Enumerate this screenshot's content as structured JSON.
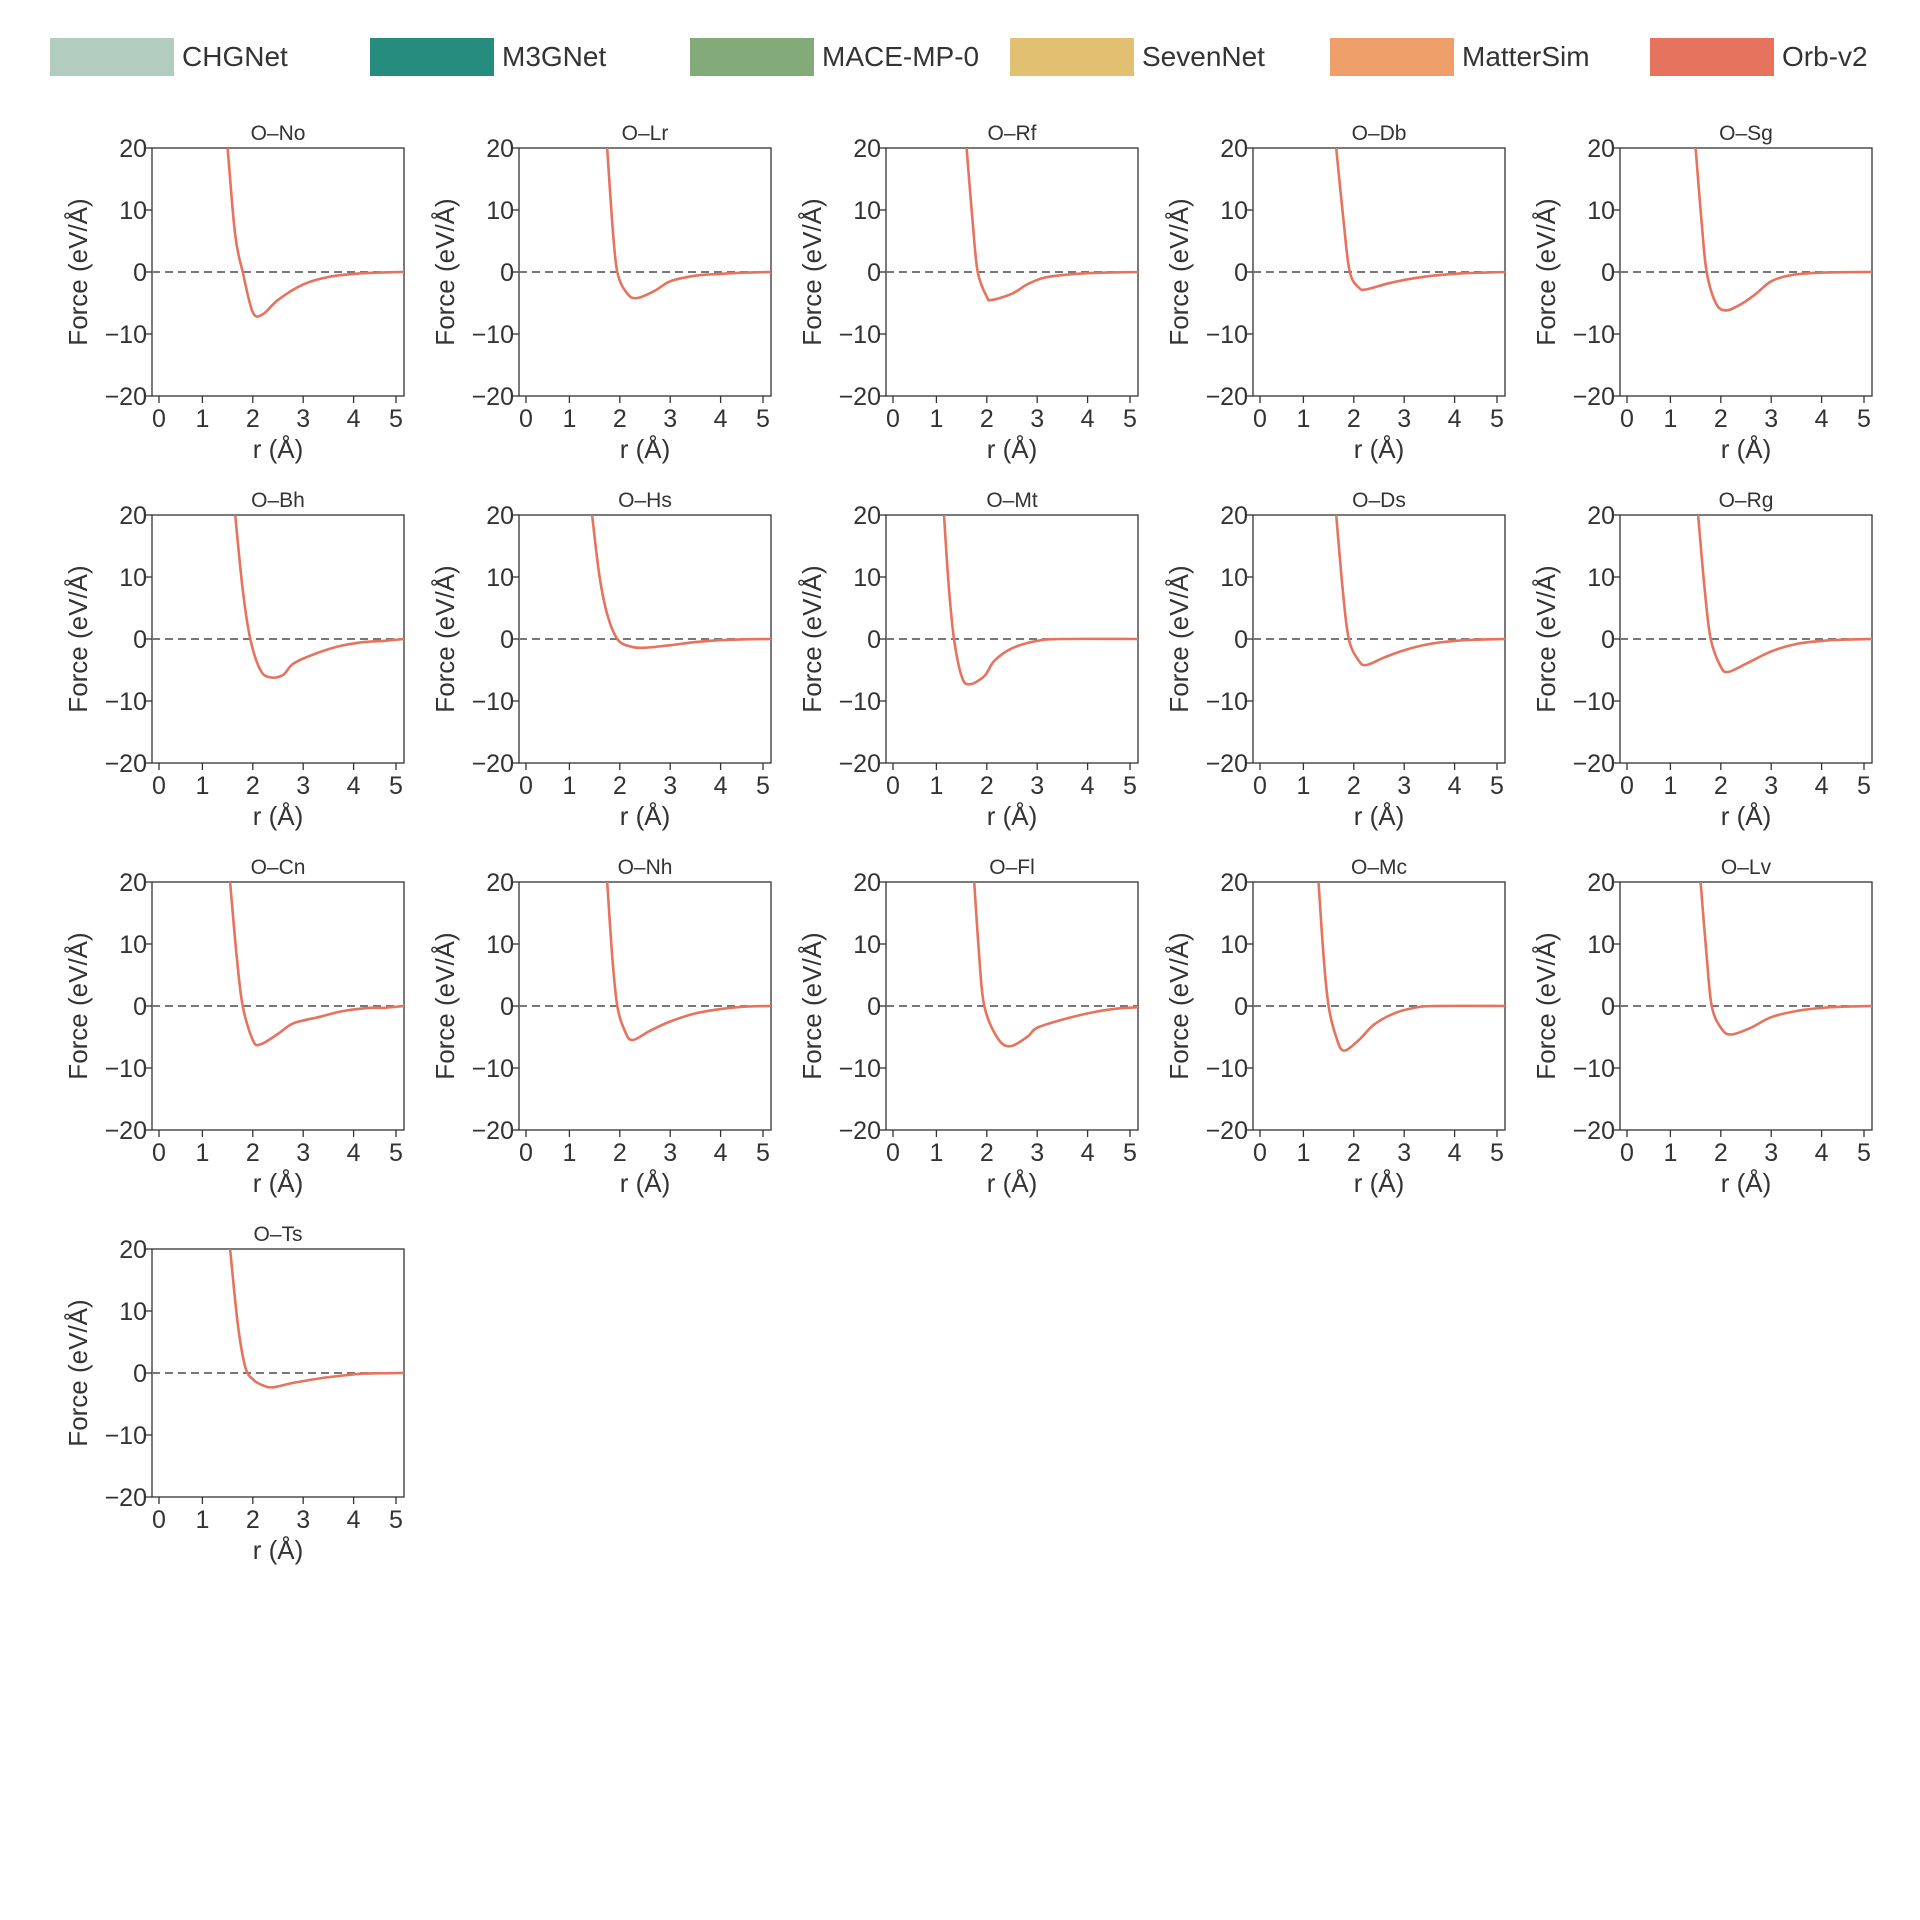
{
  "legend": [
    {
      "name": "CHGNet",
      "color": "#b2cdc0"
    },
    {
      "name": "M3GNet",
      "color": "#268c7d"
    },
    {
      "name": "MACE-MP-0",
      "color": "#82ab79"
    },
    {
      "name": "SevenNet",
      "color": "#e2c071"
    },
    {
      "name": "MatterSim",
      "color": "#efa06a"
    },
    {
      "name": "Orb-v2",
      "color": "#e5735e"
    }
  ],
  "chart_data": {
    "type": "line",
    "xlabel": "r (Å)",
    "ylabel": "Force (eV/Å)",
    "xlim": [
      0,
      5
    ],
    "ylim": [
      -20,
      20
    ],
    "xticks": [
      "0",
      "1",
      "2",
      "3",
      "4",
      "5"
    ],
    "yticks": [
      "20",
      "10",
      "0",
      "−10",
      "−20"
    ],
    "grid": false,
    "zero_line": "dashed",
    "legend_position": "top",
    "series_color": "#e5735e",
    "series_name": "Orb-v2",
    "panels": [
      {
        "title": "O–No",
        "points": [
          [
            1.5,
            20
          ],
          [
            1.65,
            6
          ],
          [
            1.8,
            0
          ],
          [
            2.0,
            -6.5
          ],
          [
            2.2,
            -6.8
          ],
          [
            2.5,
            -4.5
          ],
          [
            3.0,
            -2
          ],
          [
            3.5,
            -0.8
          ],
          [
            4.0,
            -0.3
          ],
          [
            4.5,
            -0.1
          ],
          [
            5.0,
            0
          ]
        ]
      },
      {
        "title": "O–Lr",
        "points": [
          [
            1.75,
            20
          ],
          [
            1.85,
            8
          ],
          [
            1.95,
            0
          ],
          [
            2.15,
            -3.5
          ],
          [
            2.35,
            -4.2
          ],
          [
            2.7,
            -3
          ],
          [
            3.0,
            -1.5
          ],
          [
            3.5,
            -0.6
          ],
          [
            4.0,
            -0.3
          ],
          [
            4.5,
            -0.1
          ],
          [
            5.0,
            0
          ]
        ]
      },
      {
        "title": "O–Rf",
        "points": [
          [
            1.6,
            20
          ],
          [
            1.72,
            8
          ],
          [
            1.82,
            0
          ],
          [
            2.0,
            -4
          ],
          [
            2.1,
            -4.5
          ],
          [
            2.5,
            -3.5
          ],
          [
            2.8,
            -2
          ],
          [
            3.1,
            -1
          ],
          [
            3.5,
            -0.5
          ],
          [
            4.0,
            -0.2
          ],
          [
            5.0,
            0
          ]
        ]
      },
      {
        "title": "O–Db",
        "points": [
          [
            1.65,
            20
          ],
          [
            1.8,
            8
          ],
          [
            1.92,
            0
          ],
          [
            2.1,
            -2.5
          ],
          [
            2.25,
            -2.8
          ],
          [
            2.7,
            -1.8
          ],
          [
            3.2,
            -1
          ],
          [
            3.7,
            -0.5
          ],
          [
            4.2,
            -0.2
          ],
          [
            4.6,
            -0.1
          ],
          [
            5.0,
            0
          ]
        ]
      },
      {
        "title": "O–Sg",
        "points": [
          [
            1.5,
            20
          ],
          [
            1.62,
            8
          ],
          [
            1.72,
            0
          ],
          [
            1.9,
            -5
          ],
          [
            2.1,
            -6.2
          ],
          [
            2.4,
            -5.2
          ],
          [
            2.7,
            -3.5
          ],
          [
            3.0,
            -1.5
          ],
          [
            3.4,
            -0.5
          ],
          [
            4.0,
            -0.1
          ],
          [
            5.0,
            0
          ]
        ]
      },
      {
        "title": "O–Bh",
        "points": [
          [
            1.65,
            20
          ],
          [
            1.8,
            8
          ],
          [
            1.95,
            0
          ],
          [
            2.15,
            -5
          ],
          [
            2.35,
            -6.2
          ],
          [
            2.6,
            -5.8
          ],
          [
            2.8,
            -4
          ],
          [
            3.2,
            -2.5
          ],
          [
            3.7,
            -1.2
          ],
          [
            4.2,
            -0.5
          ],
          [
            4.6,
            -0.3
          ],
          [
            5.0,
            0
          ]
        ]
      },
      {
        "title": "O–Hs",
        "points": [
          [
            1.45,
            20
          ],
          [
            1.6,
            10
          ],
          [
            1.75,
            4
          ],
          [
            1.95,
            0
          ],
          [
            2.2,
            -1.2
          ],
          [
            2.5,
            -1.4
          ],
          [
            3.0,
            -1
          ],
          [
            3.5,
            -0.5
          ],
          [
            4.0,
            -0.2
          ],
          [
            4.5,
            -0.05
          ],
          [
            5.0,
            0
          ]
        ]
      },
      {
        "title": "O–Mt",
        "points": [
          [
            1.15,
            20
          ],
          [
            1.25,
            8
          ],
          [
            1.35,
            0
          ],
          [
            1.5,
            -6
          ],
          [
            1.65,
            -7.3
          ],
          [
            1.95,
            -6
          ],
          [
            2.15,
            -3.5
          ],
          [
            2.5,
            -1.5
          ],
          [
            3.0,
            -0.3
          ],
          [
            3.5,
            0
          ],
          [
            5.0,
            0
          ]
        ]
      },
      {
        "title": "O–Ds",
        "points": [
          [
            1.65,
            20
          ],
          [
            1.78,
            8
          ],
          [
            1.9,
            0
          ],
          [
            2.1,
            -3.5
          ],
          [
            2.25,
            -4.2
          ],
          [
            2.6,
            -3
          ],
          [
            3.0,
            -1.8
          ],
          [
            3.5,
            -0.8
          ],
          [
            4.0,
            -0.3
          ],
          [
            4.5,
            -0.1
          ],
          [
            5.0,
            0
          ]
        ]
      },
      {
        "title": "O–Rg",
        "points": [
          [
            1.55,
            20
          ],
          [
            1.68,
            8
          ],
          [
            1.8,
            0
          ],
          [
            2.0,
            -4.5
          ],
          [
            2.15,
            -5.3
          ],
          [
            2.5,
            -4
          ],
          [
            3.0,
            -2
          ],
          [
            3.5,
            -0.8
          ],
          [
            4.0,
            -0.3
          ],
          [
            4.5,
            -0.1
          ],
          [
            5.0,
            0
          ]
        ]
      },
      {
        "title": "O–Cn",
        "points": [
          [
            1.55,
            20
          ],
          [
            1.68,
            8
          ],
          [
            1.8,
            0
          ],
          [
            2.0,
            -5.5
          ],
          [
            2.15,
            -6.2
          ],
          [
            2.5,
            -4.5
          ],
          [
            2.8,
            -2.8
          ],
          [
            3.3,
            -1.8
          ],
          [
            3.8,
            -0.8
          ],
          [
            4.3,
            -0.3
          ],
          [
            4.6,
            -0.3
          ],
          [
            5.0,
            0
          ]
        ]
      },
      {
        "title": "O–Nh",
        "points": [
          [
            1.75,
            20
          ],
          [
            1.85,
            8
          ],
          [
            1.95,
            0
          ],
          [
            2.1,
            -4
          ],
          [
            2.25,
            -5.5
          ],
          [
            2.6,
            -4
          ],
          [
            3.0,
            -2.5
          ],
          [
            3.5,
            -1.2
          ],
          [
            4.0,
            -0.5
          ],
          [
            4.5,
            -0.1
          ],
          [
            5.0,
            0
          ]
        ]
      },
      {
        "title": "O–Fl",
        "points": [
          [
            1.75,
            20
          ],
          [
            1.85,
            8
          ],
          [
            1.95,
            0
          ],
          [
            2.2,
            -5
          ],
          [
            2.45,
            -6.5
          ],
          [
            2.8,
            -5
          ],
          [
            3.0,
            -3.5
          ],
          [
            3.5,
            -2.2
          ],
          [
            4.0,
            -1.2
          ],
          [
            4.5,
            -0.5
          ],
          [
            5.0,
            -0.2
          ]
        ]
      },
      {
        "title": "O–Mc",
        "points": [
          [
            1.3,
            20
          ],
          [
            1.4,
            8
          ],
          [
            1.5,
            0
          ],
          [
            1.65,
            -5
          ],
          [
            1.8,
            -7.2
          ],
          [
            2.1,
            -5.5
          ],
          [
            2.4,
            -3
          ],
          [
            2.8,
            -1.2
          ],
          [
            3.2,
            -0.3
          ],
          [
            3.6,
            0
          ],
          [
            5.0,
            0
          ]
        ]
      },
      {
        "title": "O–Lv",
        "points": [
          [
            1.6,
            20
          ],
          [
            1.72,
            8
          ],
          [
            1.82,
            0
          ],
          [
            2.0,
            -3.5
          ],
          [
            2.2,
            -4.6
          ],
          [
            2.6,
            -3.5
          ],
          [
            3.0,
            -1.8
          ],
          [
            3.5,
            -0.8
          ],
          [
            4.0,
            -0.3
          ],
          [
            4.5,
            -0.1
          ],
          [
            5.0,
            0
          ]
        ]
      },
      {
        "title": "O–Ts",
        "points": [
          [
            1.55,
            20
          ],
          [
            1.7,
            8
          ],
          [
            1.85,
            1
          ],
          [
            2.0,
            -1
          ],
          [
            2.2,
            -2
          ],
          [
            2.4,
            -2.3
          ],
          [
            2.8,
            -1.6
          ],
          [
            3.3,
            -0.9
          ],
          [
            3.8,
            -0.4
          ],
          [
            4.2,
            -0.1
          ],
          [
            5.0,
            0
          ]
        ]
      }
    ]
  }
}
